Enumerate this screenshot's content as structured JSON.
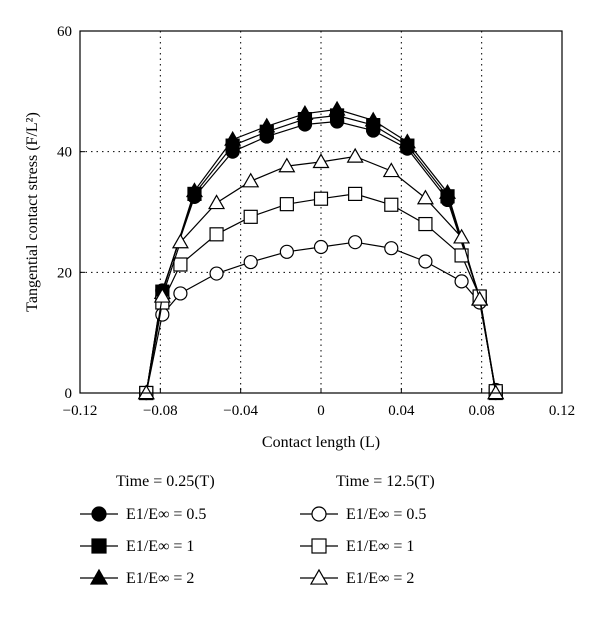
{
  "chart_data": {
    "type": "line",
    "xlabel": "Contact length (L)",
    "ylabel": "Tangential contact stress (F/L²)",
    "xlim": [
      -0.12,
      0.12
    ],
    "ylim": [
      0,
      60
    ],
    "x_ticks": [
      "−0.12",
      "−0.08",
      "−0.04",
      "0",
      "0.04",
      "0.08",
      "0.12"
    ],
    "y_ticks": [
      "0",
      "20",
      "40",
      "60"
    ],
    "grid": "dotted",
    "legend": {
      "placement": "below",
      "group_titles": [
        "Time = 0.25(T)",
        "Time = 12.5(T)"
      ]
    },
    "series": [
      {
        "name": "E1/E∞ = 0.5",
        "group": 0,
        "marker": "circle-filled",
        "x": [
          -0.087,
          -0.079,
          -0.063,
          -0.044,
          -0.027,
          -0.008,
          0.008,
          0.026,
          0.043,
          0.063,
          0.079,
          0.087
        ],
        "y": [
          0,
          17,
          32.5,
          40,
          42.5,
          44.5,
          45,
          43.5,
          40.5,
          32,
          15.8,
          0
        ]
      },
      {
        "name": "E1/E∞ = 1",
        "group": 0,
        "marker": "square-filled",
        "x": [
          -0.087,
          -0.079,
          -0.063,
          -0.044,
          -0.027,
          -0.008,
          0.008,
          0.026,
          0.043,
          0.063,
          0.079,
          0.087
        ],
        "y": [
          0,
          16.8,
          33,
          41,
          43.3,
          45.4,
          46,
          44.4,
          41,
          32.6,
          15.9,
          0
        ]
      },
      {
        "name": "E1/E∞ = 2",
        "group": 0,
        "marker": "triangle-filled",
        "x": [
          -0.087,
          -0.079,
          -0.063,
          -0.044,
          -0.027,
          -0.008,
          0.008,
          0.026,
          0.043,
          0.063,
          0.079,
          0.087
        ],
        "y": [
          0,
          16.6,
          33.5,
          42,
          44.2,
          46.3,
          47,
          45.2,
          41.6,
          33.2,
          15.6,
          0
        ]
      },
      {
        "name": "E1/E∞ = 0.5",
        "group": 1,
        "marker": "circle-open",
        "x": [
          -0.087,
          -0.079,
          -0.07,
          -0.052,
          -0.035,
          -0.017,
          0,
          0.017,
          0.035,
          0.052,
          0.07,
          0.079,
          0.087
        ],
        "y": [
          0,
          13,
          16.5,
          19.8,
          21.7,
          23.4,
          24.2,
          25,
          24,
          21.8,
          18.5,
          15,
          0.5
        ]
      },
      {
        "name": "E1/E∞ = 1",
        "group": 1,
        "marker": "square-open",
        "x": [
          -0.087,
          -0.079,
          -0.07,
          -0.052,
          -0.035,
          -0.017,
          0,
          0.017,
          0.035,
          0.052,
          0.07,
          0.079,
          0.087
        ],
        "y": [
          0,
          15,
          21.3,
          26.3,
          29.2,
          31.3,
          32.2,
          33,
          31.2,
          28,
          22.8,
          16,
          0.3
        ]
      },
      {
        "name": "E1/E∞ = 2",
        "group": 1,
        "marker": "triangle-open",
        "x": [
          -0.087,
          -0.079,
          -0.07,
          -0.052,
          -0.035,
          -0.017,
          0,
          0.017,
          0.035,
          0.052,
          0.07,
          0.079,
          0.087
        ],
        "y": [
          0,
          16,
          25,
          31.5,
          35.1,
          37.6,
          38.3,
          39.2,
          36.8,
          32.3,
          25.8,
          15.5,
          0
        ]
      }
    ]
  }
}
